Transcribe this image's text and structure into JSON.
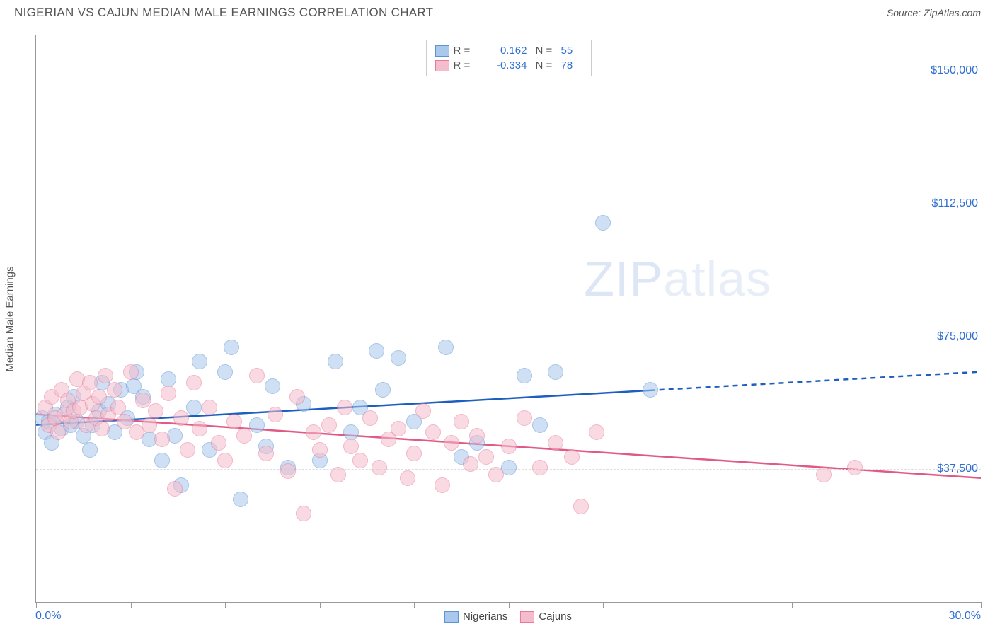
{
  "header": {
    "title": "NIGERIAN VS CAJUN MEDIAN MALE EARNINGS CORRELATION CHART",
    "source_prefix": "Source: ",
    "source_link": "ZipAtlas.com"
  },
  "watermark": {
    "zip": "ZIP",
    "atlas": "atlas"
  },
  "chart": {
    "type": "scatter",
    "y_axis": {
      "title": "Median Male Earnings",
      "min": 0,
      "max": 160000,
      "gridlines": [
        37500,
        75000,
        112500,
        150000
      ],
      "labels": [
        "$37,500",
        "$75,000",
        "$112,500",
        "$150,000"
      ]
    },
    "x_axis": {
      "min": 0,
      "max": 30,
      "ticks": [
        0,
        3,
        6,
        9,
        12,
        15,
        18,
        21,
        24,
        27,
        30
      ],
      "label_left": "0.0%",
      "label_right": "30.0%"
    },
    "series": [
      {
        "name": "Nigerians",
        "color_fill": "#a9c8ec",
        "color_stroke": "#5b93d4",
        "opacity": 0.55,
        "marker_radius": 11,
        "r_value": "0.162",
        "n_value": "55",
        "trend": {
          "color": "#1d5fbf",
          "width": 2.5,
          "y_at_x0": 50000,
          "y_at_xmax": 65000,
          "solid_until_x": 19.5
        },
        "points": [
          [
            0.2,
            52000
          ],
          [
            0.3,
            48000
          ],
          [
            0.4,
            51000
          ],
          [
            0.5,
            45000
          ],
          [
            0.6,
            53000
          ],
          [
            0.8,
            49000
          ],
          [
            1.0,
            55000
          ],
          [
            1.1,
            50000
          ],
          [
            1.2,
            58000
          ],
          [
            1.3,
            51000
          ],
          [
            1.5,
            47000
          ],
          [
            1.7,
            43000
          ],
          [
            1.8,
            50000
          ],
          [
            2.0,
            54000
          ],
          [
            2.1,
            62000
          ],
          [
            2.3,
            56000
          ],
          [
            2.5,
            48000
          ],
          [
            2.7,
            60000
          ],
          [
            2.9,
            52000
          ],
          [
            3.1,
            61000
          ],
          [
            3.2,
            65000
          ],
          [
            3.4,
            58000
          ],
          [
            3.6,
            46000
          ],
          [
            4.0,
            40000
          ],
          [
            4.2,
            63000
          ],
          [
            4.4,
            47000
          ],
          [
            4.6,
            33000
          ],
          [
            5.0,
            55000
          ],
          [
            5.2,
            68000
          ],
          [
            5.5,
            43000
          ],
          [
            6.0,
            65000
          ],
          [
            6.2,
            72000
          ],
          [
            6.5,
            29000
          ],
          [
            7.0,
            50000
          ],
          [
            7.3,
            44000
          ],
          [
            7.5,
            61000
          ],
          [
            8.0,
            38000
          ],
          [
            8.5,
            56000
          ],
          [
            9.0,
            40000
          ],
          [
            9.5,
            68000
          ],
          [
            10.0,
            48000
          ],
          [
            10.3,
            55000
          ],
          [
            10.8,
            71000
          ],
          [
            11.0,
            60000
          ],
          [
            11.5,
            69000
          ],
          [
            12.0,
            51000
          ],
          [
            13.0,
            72000
          ],
          [
            13.5,
            41000
          ],
          [
            14.0,
            45000
          ],
          [
            15.0,
            38000
          ],
          [
            15.5,
            64000
          ],
          [
            16.0,
            50000
          ],
          [
            16.5,
            65000
          ],
          [
            18.0,
            107000
          ],
          [
            19.5,
            60000
          ]
        ]
      },
      {
        "name": "Cajuns",
        "color_fill": "#f5bccb",
        "color_stroke": "#e77a9a",
        "opacity": 0.55,
        "marker_radius": 11,
        "r_value": "-0.334",
        "n_value": "78",
        "trend": {
          "color": "#e05a86",
          "width": 2.5,
          "y_at_x0": 53000,
          "y_at_xmax": 35000,
          "solid_until_x": 30
        },
        "points": [
          [
            0.3,
            55000
          ],
          [
            0.4,
            50000
          ],
          [
            0.5,
            58000
          ],
          [
            0.6,
            52000
          ],
          [
            0.7,
            48000
          ],
          [
            0.8,
            60000
          ],
          [
            0.9,
            53000
          ],
          [
            1.0,
            57000
          ],
          [
            1.1,
            51000
          ],
          [
            1.2,
            54000
          ],
          [
            1.3,
            63000
          ],
          [
            1.4,
            55000
          ],
          [
            1.5,
            59000
          ],
          [
            1.6,
            50000
          ],
          [
            1.7,
            62000
          ],
          [
            1.8,
            56000
          ],
          [
            1.9,
            52000
          ],
          [
            2.0,
            58000
          ],
          [
            2.1,
            49000
          ],
          [
            2.2,
            64000
          ],
          [
            2.3,
            53000
          ],
          [
            2.5,
            60000
          ],
          [
            2.6,
            55000
          ],
          [
            2.8,
            51000
          ],
          [
            3.0,
            65000
          ],
          [
            3.2,
            48000
          ],
          [
            3.4,
            57000
          ],
          [
            3.6,
            50000
          ],
          [
            3.8,
            54000
          ],
          [
            4.0,
            46000
          ],
          [
            4.2,
            59000
          ],
          [
            4.4,
            32000
          ],
          [
            4.6,
            52000
          ],
          [
            4.8,
            43000
          ],
          [
            5.0,
            62000
          ],
          [
            5.2,
            49000
          ],
          [
            5.5,
            55000
          ],
          [
            5.8,
            45000
          ],
          [
            6.0,
            40000
          ],
          [
            6.3,
            51000
          ],
          [
            6.6,
            47000
          ],
          [
            7.0,
            64000
          ],
          [
            7.3,
            42000
          ],
          [
            7.6,
            53000
          ],
          [
            8.0,
            37000
          ],
          [
            8.3,
            58000
          ],
          [
            8.5,
            25000
          ],
          [
            8.8,
            48000
          ],
          [
            9.0,
            43000
          ],
          [
            9.3,
            50000
          ],
          [
            9.6,
            36000
          ],
          [
            9.8,
            55000
          ],
          [
            10.0,
            44000
          ],
          [
            10.3,
            40000
          ],
          [
            10.6,
            52000
          ],
          [
            10.9,
            38000
          ],
          [
            11.2,
            46000
          ],
          [
            11.5,
            49000
          ],
          [
            11.8,
            35000
          ],
          [
            12.0,
            42000
          ],
          [
            12.3,
            54000
          ],
          [
            12.6,
            48000
          ],
          [
            12.9,
            33000
          ],
          [
            13.2,
            45000
          ],
          [
            13.5,
            51000
          ],
          [
            13.8,
            39000
          ],
          [
            14.0,
            47000
          ],
          [
            14.3,
            41000
          ],
          [
            14.6,
            36000
          ],
          [
            15.0,
            44000
          ],
          [
            15.5,
            52000
          ],
          [
            16.0,
            38000
          ],
          [
            16.5,
            45000
          ],
          [
            17.0,
            41000
          ],
          [
            17.3,
            27000
          ],
          [
            17.8,
            48000
          ],
          [
            25.0,
            36000
          ],
          [
            26.0,
            38000
          ]
        ]
      }
    ],
    "legend_bottom": [
      {
        "label": "Nigerians",
        "fill": "#a9c8ec",
        "stroke": "#5b93d4"
      },
      {
        "label": "Cajuns",
        "fill": "#f5bccb",
        "stroke": "#e77a9a"
      }
    ]
  }
}
